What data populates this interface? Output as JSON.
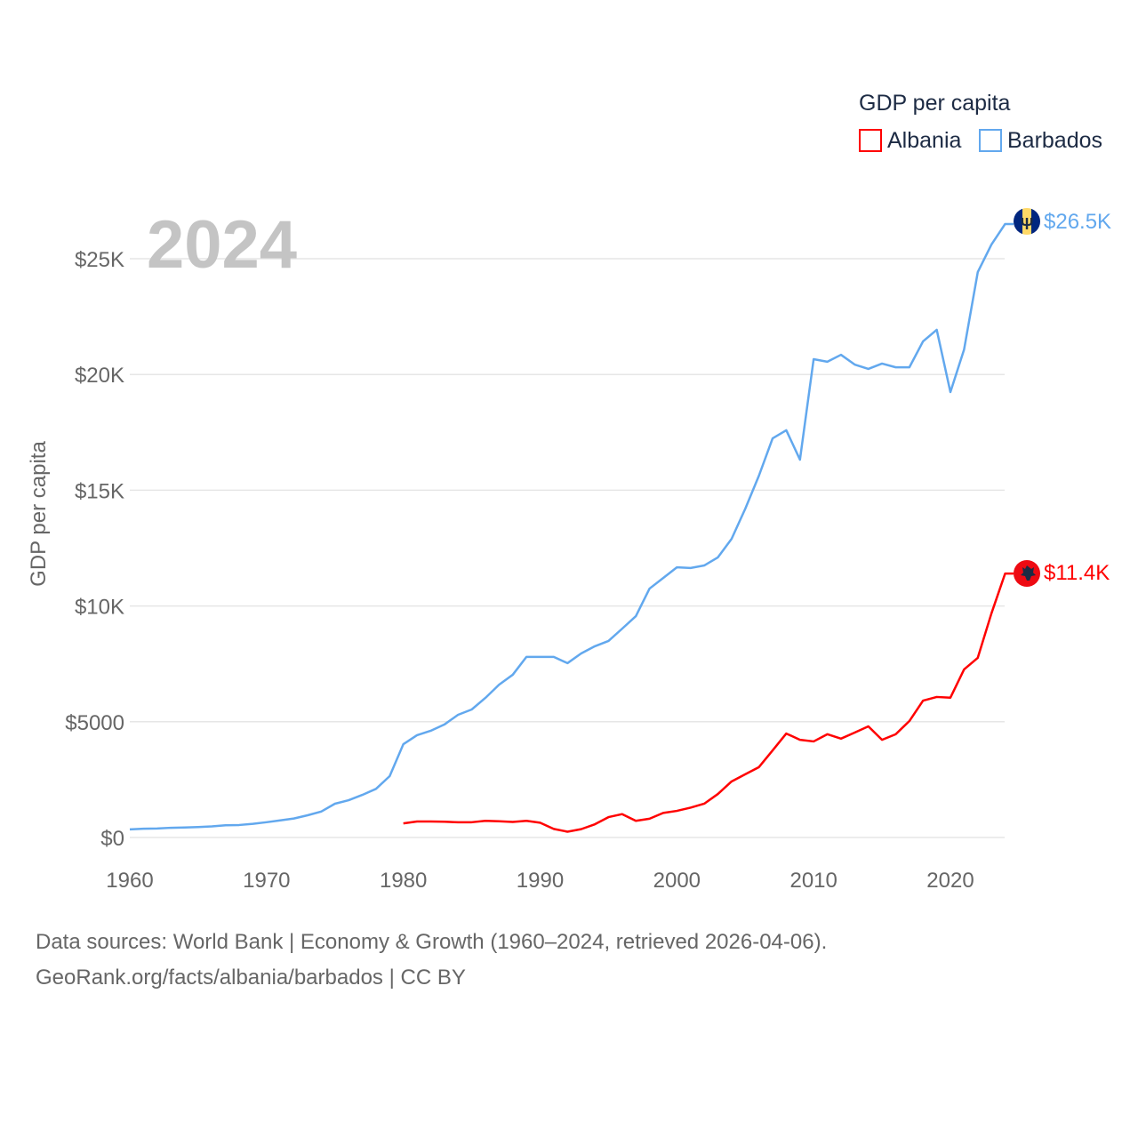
{
  "chart_data": {
    "type": "line",
    "title": "GDP per capita",
    "ylabel": "GDP per capita",
    "xlabel": "",
    "year_label": "2024",
    "xlim": [
      1960,
      2024
    ],
    "ylim": [
      0,
      27000
    ],
    "x_ticks": [
      1960,
      1970,
      1980,
      1990,
      2000,
      2010,
      2020
    ],
    "y_ticks": [
      {
        "value": 0,
        "label": "$0"
      },
      {
        "value": 5000,
        "label": "$5000"
      },
      {
        "value": 10000,
        "label": "$10K"
      },
      {
        "value": 15000,
        "label": "$15K"
      },
      {
        "value": 20000,
        "label": "$20K"
      },
      {
        "value": 25000,
        "label": "$25K"
      }
    ],
    "grid": true,
    "legend": {
      "title": "GDP per capita",
      "placement": "top-right"
    },
    "series": [
      {
        "name": "Albania",
        "color": "#ff0000",
        "end_label": "$11.4K",
        "flag_icon": "albania-flag",
        "start_year": 1980,
        "values": [
          610,
          690,
          690,
          680,
          660,
          660,
          720,
          700,
          670,
          720,
          640,
          370,
          250,
          360,
          570,
          880,
          1010,
          720,
          810,
          1060,
          1150,
          1290,
          1460,
          1880,
          2420,
          2730,
          3040,
          3760,
          4490,
          4220,
          4150,
          4460,
          4270,
          4530,
          4800,
          4220,
          4460,
          5030,
          5910,
          6070,
          6040,
          7260,
          7760,
          9680,
          11400
        ]
      },
      {
        "name": "Barbados",
        "color": "#62a8ee",
        "end_label": "$26.5K",
        "flag_icon": "barbados-flag",
        "start_year": 1960,
        "values": [
          350,
          380,
          390,
          420,
          430,
          450,
          480,
          530,
          540,
          590,
          660,
          740,
          820,
          960,
          1120,
          1460,
          1610,
          1840,
          2100,
          2650,
          4030,
          4420,
          4610,
          4880,
          5300,
          5530,
          6030,
          6600,
          7030,
          7800,
          7800,
          7800,
          7530,
          7950,
          8260,
          8490,
          9020,
          9560,
          10750,
          11210,
          11670,
          11640,
          11750,
          12100,
          12900,
          14200,
          15630,
          17240,
          17590,
          16320,
          20660,
          20550,
          20850,
          20430,
          20240,
          20470,
          20310,
          20310,
          21430,
          21930,
          19240,
          21080,
          24420,
          25610,
          26500
        ]
      }
    ]
  },
  "footer": {
    "sources": "Data sources: World Bank | Economy & Growth (1960–2024, retrieved 2026-04-06).",
    "credit": "GeoRank.org/facts/albania/barbados | CC BY"
  }
}
